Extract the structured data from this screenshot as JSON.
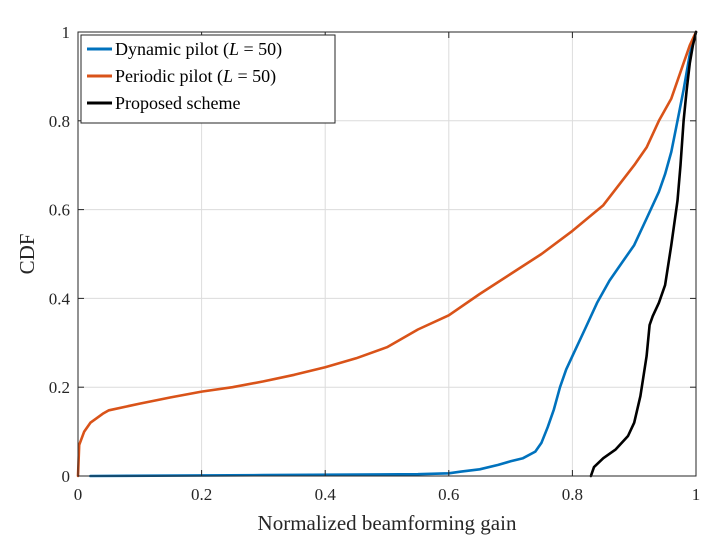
{
  "chart_data": {
    "type": "line",
    "xlabel": "Normalized beamforming gain",
    "ylabel": "CDF",
    "xlim": [
      0,
      1
    ],
    "ylim": [
      0,
      1
    ],
    "xticks": [
      "0",
      "0.2",
      "0.4",
      "0.6",
      "0.8",
      "1"
    ],
    "yticks": [
      "0",
      "0.2",
      "0.4",
      "0.6",
      "0.8",
      "1"
    ],
    "grid": true,
    "legend_position": "top-left",
    "series": [
      {
        "name": "Dynamic pilot (L = 50)",
        "legend_plain": "Dynamic pilot (",
        "legend_math": "L",
        "legend_rest": " = 50)",
        "color": "#0072BD",
        "x": [
          0.02,
          0.3,
          0.55,
          0.6,
          0.62,
          0.65,
          0.68,
          0.7,
          0.72,
          0.74,
          0.75,
          0.76,
          0.77,
          0.78,
          0.79,
          0.8,
          0.82,
          0.84,
          0.86,
          0.88,
          0.9,
          0.92,
          0.94,
          0.95,
          0.96,
          0.97,
          0.98,
          0.99,
          1.0
        ],
        "y": [
          0.0,
          0.002,
          0.004,
          0.006,
          0.01,
          0.015,
          0.025,
          0.033,
          0.04,
          0.055,
          0.075,
          0.11,
          0.15,
          0.2,
          0.24,
          0.27,
          0.33,
          0.39,
          0.44,
          0.48,
          0.52,
          0.58,
          0.64,
          0.68,
          0.73,
          0.8,
          0.87,
          0.95,
          1.0
        ]
      },
      {
        "name": "Periodic pilot (L = 50)",
        "legend_plain": "Periodic pilot (",
        "legend_math": "L",
        "legend_rest": " = 50)",
        "color": "#D95319",
        "x": [
          0.0,
          0.002,
          0.01,
          0.02,
          0.03,
          0.04,
          0.05,
          0.1,
          0.15,
          0.2,
          0.25,
          0.3,
          0.35,
          0.4,
          0.45,
          0.5,
          0.55,
          0.6,
          0.65,
          0.7,
          0.75,
          0.8,
          0.85,
          0.9,
          0.92,
          0.94,
          0.96,
          0.98,
          0.99,
          1.0
        ],
        "y": [
          0.0,
          0.07,
          0.1,
          0.12,
          0.13,
          0.14,
          0.148,
          0.163,
          0.177,
          0.19,
          0.2,
          0.213,
          0.228,
          0.245,
          0.265,
          0.29,
          0.33,
          0.362,
          0.41,
          0.455,
          0.5,
          0.552,
          0.61,
          0.7,
          0.74,
          0.8,
          0.85,
          0.93,
          0.97,
          1.0
        ]
      },
      {
        "name": "Proposed scheme",
        "legend_plain": "Proposed scheme",
        "legend_math": "",
        "legend_rest": "",
        "color": "#000000",
        "x": [
          0.83,
          0.835,
          0.85,
          0.86,
          0.87,
          0.88,
          0.89,
          0.9,
          0.91,
          0.92,
          0.925,
          0.93,
          0.94,
          0.95,
          0.96,
          0.97,
          0.975,
          0.98,
          0.985,
          0.99,
          0.995,
          1.0
        ],
        "y": [
          0.0,
          0.02,
          0.04,
          0.05,
          0.06,
          0.075,
          0.09,
          0.12,
          0.18,
          0.27,
          0.34,
          0.36,
          0.39,
          0.43,
          0.52,
          0.62,
          0.7,
          0.8,
          0.87,
          0.93,
          0.97,
          1.0
        ]
      }
    ]
  }
}
